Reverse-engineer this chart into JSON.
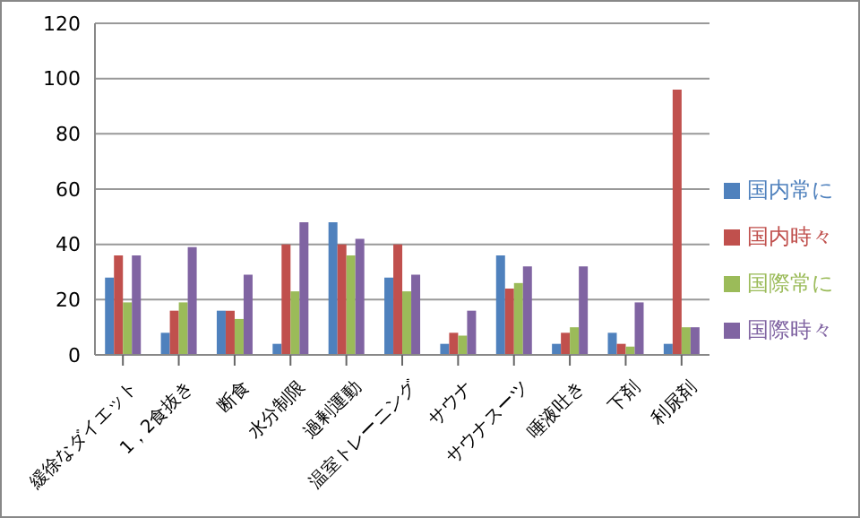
{
  "chart_data": {
    "type": "bar",
    "categories": [
      "緩徐なダイエット",
      "1，2食抜き",
      "断食",
      "水分制限",
      "過剰運動",
      "温室トレーニング",
      "サウナ",
      "サウナスーツ",
      "唾液吐き",
      "下剤",
      "利尿剤"
    ],
    "series": [
      {
        "name": "国内常に",
        "color": "#4f81bd",
        "values": [
          28,
          8,
          16,
          4,
          48,
          28,
          4,
          36,
          4,
          8,
          4
        ]
      },
      {
        "name": "国内時々",
        "color": "#c0504d",
        "values": [
          36,
          16,
          16,
          40,
          40,
          40,
          8,
          24,
          8,
          4,
          96
        ]
      },
      {
        "name": "国際常に",
        "color": "#9bbb59",
        "values": [
          19,
          19,
          13,
          23,
          36,
          23,
          7,
          26,
          10,
          3,
          10
        ]
      },
      {
        "name": "国際時々",
        "color": "#8064a2",
        "values": [
          36,
          39,
          29,
          48,
          42,
          29,
          16,
          32,
          32,
          19,
          10
        ]
      }
    ],
    "ylim": [
      0,
      120
    ],
    "yticks": [
      0,
      20,
      40,
      60,
      80,
      100,
      120
    ],
    "grid": "y",
    "legend": "right"
  }
}
